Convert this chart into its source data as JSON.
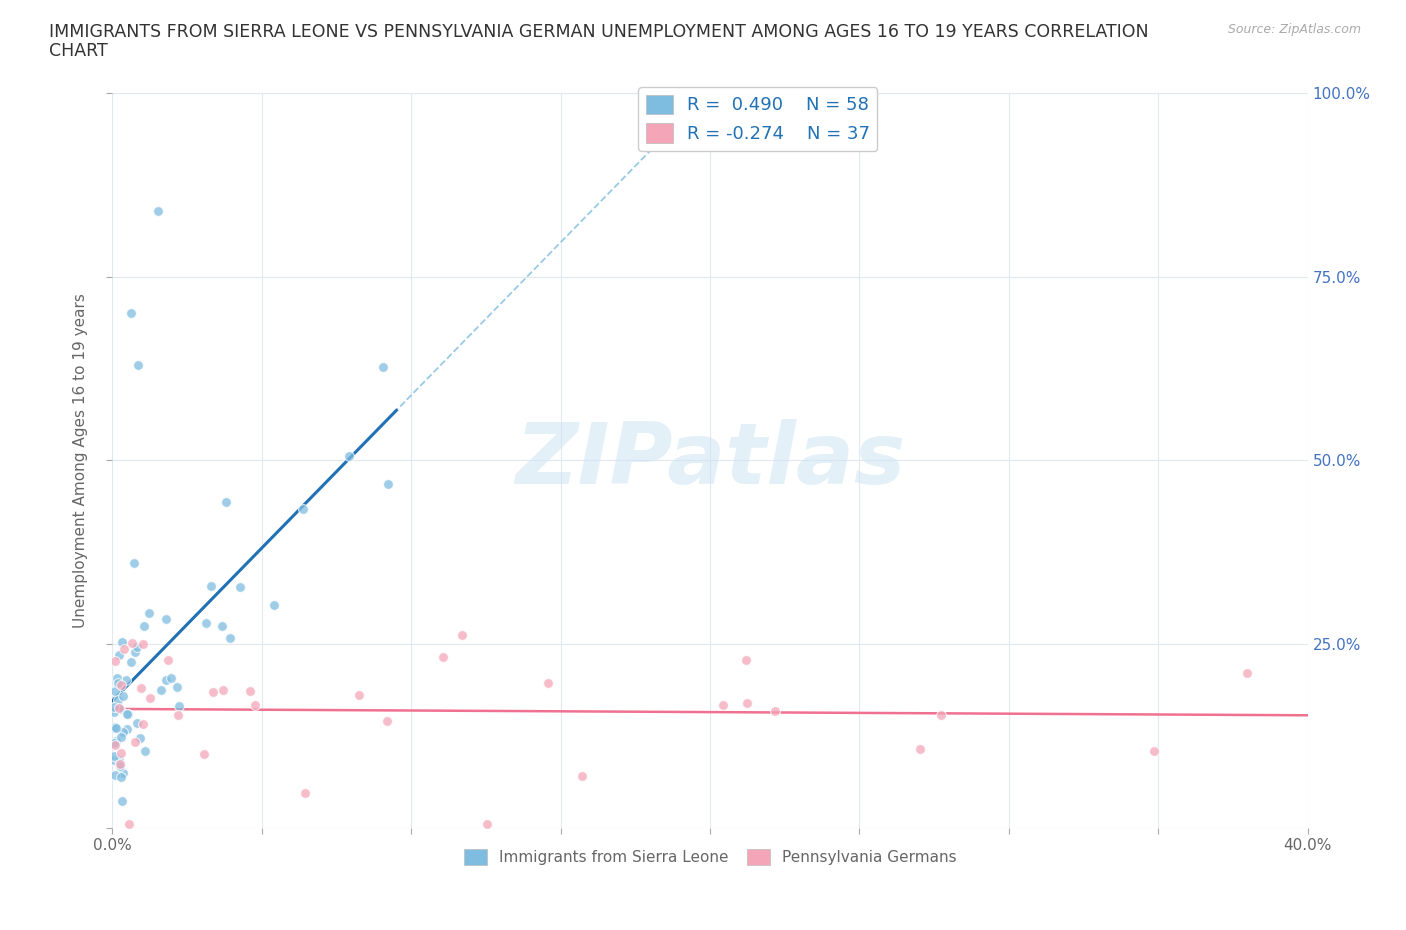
{
  "title_line1": "IMMIGRANTS FROM SIERRA LEONE VS PENNSYLVANIA GERMAN UNEMPLOYMENT AMONG AGES 16 TO 19 YEARS CORRELATION",
  "title_line2": "CHART",
  "source_text": "Source: ZipAtlas.com",
  "ylabel": "Unemployment Among Ages 16 to 19 years",
  "xlim": [
    0.0,
    0.4
  ],
  "ylim": [
    0.0,
    1.0
  ],
  "blue_scatter_color": "#7fbde0",
  "blue_line_color": "#2171b5",
  "blue_dash_color": "#7fbde0",
  "pink_scatter_color": "#f4a6b8",
  "pink_line_color": "#f07090",
  "legend_R1": "R =  0.490",
  "legend_N1": "N = 58",
  "legend_R2": "R = -0.274",
  "legend_N2": "N = 37",
  "legend_text_color": "#2171b5",
  "label1": "Immigrants from Sierra Leone",
  "label2": "Pennsylvania Germans",
  "background_color": "#ffffff",
  "grid_color": "#e0e8f0",
  "right_tick_color": "#4472c4",
  "title_color": "#333333",
  "axis_label_color": "#666666",
  "tick_label_color": "#666666"
}
